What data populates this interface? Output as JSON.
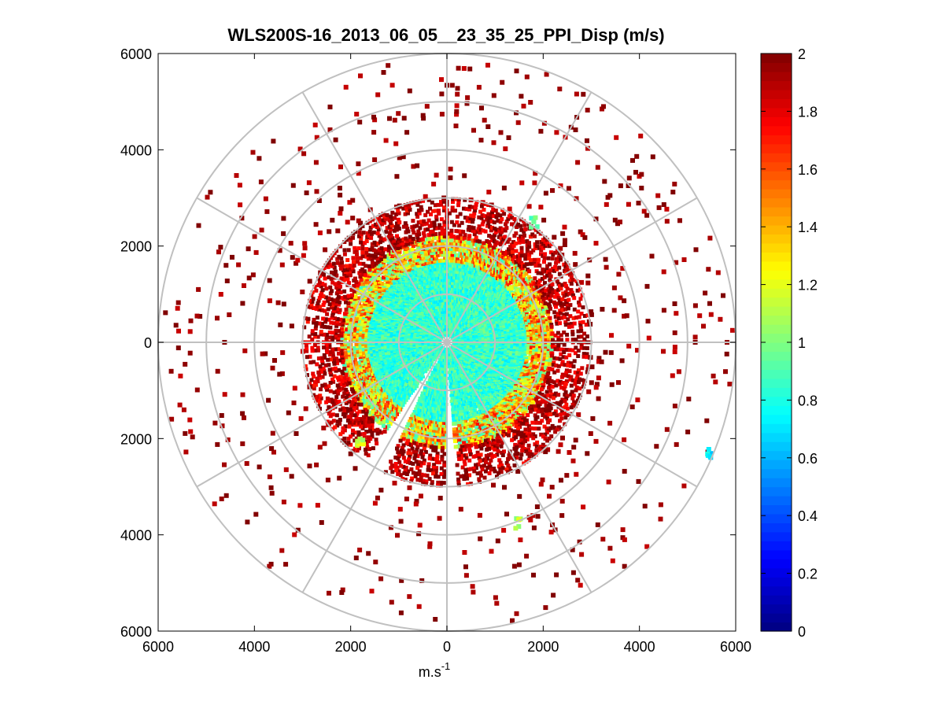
{
  "chart_data": {
    "type": "heatmap",
    "subtype": "polar-ppi-scan",
    "title": "WLS200S-16_2013_06_05__23_35_25_PPI_Disp (m/s)",
    "xlabel": "m.s",
    "xlabel_superscript": "-1",
    "ylabel": "",
    "xlim": [
      -6000,
      6000
    ],
    "ylim": [
      -6000,
      6000
    ],
    "x_tick_labels": [
      "6000",
      "4000",
      "2000",
      "0",
      "2000",
      "4000",
      "6000"
    ],
    "y_tick_labels": [
      "6000",
      "4000",
      "2000",
      "0",
      "2000",
      "4000",
      "6000"
    ],
    "polar_grid": {
      "ring_radii_m": [
        1000,
        2000,
        3000,
        4000,
        5000,
        6000
      ],
      "spoke_angles_deg": [
        0,
        30,
        60,
        90,
        120,
        150,
        180,
        210,
        240,
        270,
        300,
        330
      ]
    },
    "colorbar": {
      "colormap": "jet",
      "range": [
        0,
        2
      ],
      "tick_labels": [
        "0",
        "0.2",
        "0.4",
        "0.6",
        "0.8",
        "1",
        "1.2",
        "1.4",
        "1.6",
        "1.8",
        "2"
      ]
    },
    "rings": [
      {
        "r_min": 150,
        "r_max": 1700,
        "value_mean": 0.85,
        "value_spread": 0.15,
        "density": 0.97
      },
      {
        "r_min": 1700,
        "r_max": 2200,
        "value_mean": 1.3,
        "value_spread": 0.45,
        "density": 0.85
      },
      {
        "r_min": 2200,
        "r_max": 3000,
        "value_mean": 1.9,
        "value_spread": 0.2,
        "density": 0.45
      },
      {
        "r_min": 3000,
        "r_max": 6000,
        "value_mean": 1.95,
        "value_spread": 0.1,
        "density": 0.03
      }
    ],
    "blocked_sectors_deg": [
      [
        176,
        180
      ],
      [
        206,
        214
      ]
    ],
    "notable_patches": [
      {
        "x": 5450,
        "y": -2300,
        "value": 0.7
      },
      {
        "x": 1500,
        "y": -3750,
        "value": 1.1
      },
      {
        "x": 1800,
        "y": 2500,
        "value": 1.0
      },
      {
        "x": -1800,
        "y": -2100,
        "value": 1.1
      }
    ]
  }
}
